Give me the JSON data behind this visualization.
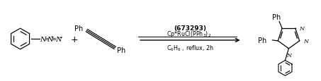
{
  "figsize": [
    4.53,
    1.16
  ],
  "dpi": 100,
  "bg_color": "#ffffff",
  "catalyst_bold": "(673293)",
  "catalyst1": "Cp*RuCl(PPh$_3$)$_2$",
  "conditions": "C$_6$H$_6$ , reflux, 2h",
  "arrow_color": "#000000",
  "text_color": "#000000",
  "font_family": "DejaVu Sans"
}
